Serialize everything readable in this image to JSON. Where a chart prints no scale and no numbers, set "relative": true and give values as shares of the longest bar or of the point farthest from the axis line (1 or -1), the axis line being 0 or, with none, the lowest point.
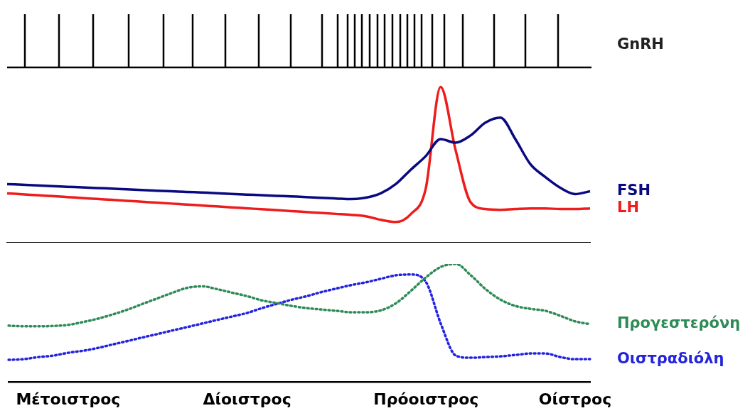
{
  "chart_data": [
    {
      "type": "other",
      "title": "GnRH"
    },
    {
      "type": "line",
      "relative": true,
      "tick_labels": false,
      "marker": "none",
      "line_style": "solid",
      "categories": [
        null,
        null,
        null,
        null,
        null,
        null,
        null,
        null,
        null,
        null,
        null,
        null,
        null,
        null,
        null,
        null,
        null,
        null,
        null,
        null,
        null,
        null,
        null,
        null,
        null,
        null,
        null,
        null,
        null,
        null,
        null,
        null,
        null,
        null,
        null,
        null,
        null,
        null,
        null,
        null
      ],
      "series": [
        {
          "name": "FSH",
          "color": "#0a0a80",
          "values": [
            0.376,
            0.372,
            0.368,
            0.363,
            0.359,
            0.355,
            0.351,
            0.347,
            0.343,
            0.338,
            0.334,
            0.33,
            0.326,
            0.322,
            0.318,
            0.313,
            0.309,
            0.305,
            0.301,
            0.297,
            0.293,
            0.288,
            0.284,
            0.28,
            0.289,
            0.317,
            0.376,
            0.468,
            0.555,
            0.665,
            0.642,
            0.688,
            0.771,
            0.803,
            0.665,
            0.505,
            0.422,
            0.353,
            0.312,
            0.33
          ]
        },
        {
          "name": "LH",
          "color": "#ee1c1c",
          "values": [
            0.317,
            0.311,
            0.305,
            0.299,
            0.293,
            0.287,
            0.281,
            0.275,
            0.269,
            0.263,
            0.257,
            0.251,
            0.245,
            0.239,
            0.233,
            0.227,
            0.221,
            0.215,
            0.209,
            0.203,
            0.197,
            0.191,
            0.185,
            0.179,
            0.17,
            0.147,
            0.133,
            0.183,
            0.344,
            1,
            0.596,
            0.261,
            0.216,
            0.211,
            0.216,
            0.22,
            0.22,
            0.216,
            0.216,
            0.22
          ]
        }
      ]
    },
    {
      "type": "line",
      "relative": true,
      "tick_labels": "x",
      "marker": "none",
      "line_style": "dotted",
      "categories": [
        null,
        null,
        null,
        null,
        "Μέτοιστρος",
        null,
        null,
        null,
        null,
        null,
        null,
        null,
        null,
        null,
        null,
        null,
        "Δίοιστρος",
        null,
        null,
        null,
        null,
        null,
        null,
        null,
        null,
        null,
        null,
        null,
        "Πρόοιστρος",
        null,
        null,
        null,
        null,
        null,
        null,
        null,
        null,
        null,
        "Οίστρος",
        null
      ],
      "series": [
        {
          "name": "Προγεστερόνη",
          "color": "#2e8b57",
          "values": [
            0.479,
            0.473,
            0.473,
            0.476,
            0.485,
            0.509,
            0.538,
            0.574,
            0.615,
            0.663,
            0.71,
            0.757,
            0.799,
            0.811,
            0.787,
            0.757,
            0.728,
            0.692,
            0.669,
            0.645,
            0.627,
            0.615,
            0.604,
            0.592,
            0.592,
            0.609,
            0.669,
            0.775,
            0.888,
            0.976,
            1,
            0.905,
            0.787,
            0.698,
            0.645,
            0.621,
            0.604,
            0.562,
            0.515,
            0.491
          ]
        },
        {
          "name": "Οιστραδιόλη",
          "color": "#2323dd",
          "values": [
            0.189,
            0.195,
            0.213,
            0.225,
            0.249,
            0.266,
            0.29,
            0.32,
            0.349,
            0.379,
            0.408,
            0.438,
            0.467,
            0.497,
            0.527,
            0.556,
            0.586,
            0.627,
            0.663,
            0.698,
            0.728,
            0.763,
            0.793,
            0.822,
            0.846,
            0.876,
            0.905,
            0.911,
            0.846,
            0.491,
            0.225,
            0.207,
            0.213,
            0.219,
            0.231,
            0.243,
            0.243,
            0.213,
            0.195,
            0.195
          ]
        }
      ]
    }
  ]
}
